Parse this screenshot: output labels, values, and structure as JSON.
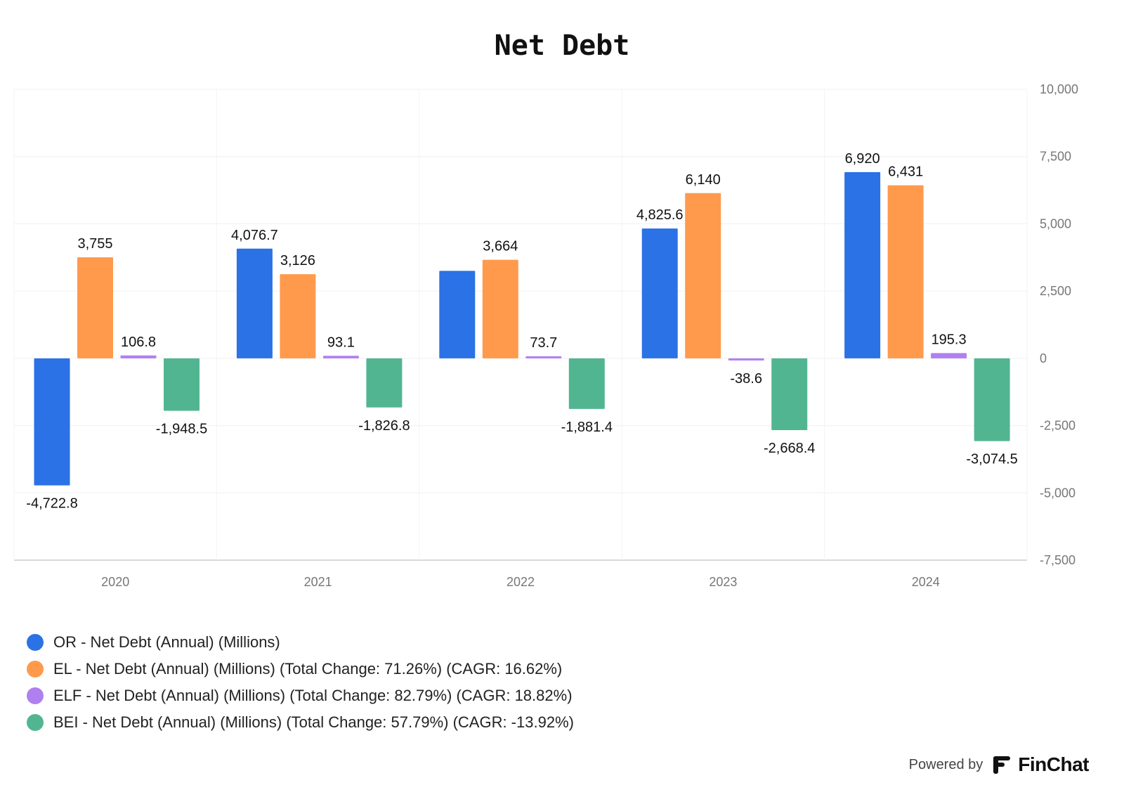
{
  "chart_data": {
    "type": "bar",
    "title": "Net Debt",
    "categories": [
      "2020",
      "2021",
      "2022",
      "2023",
      "2024"
    ],
    "ylim": [
      -7500,
      10000
    ],
    "yticks": [
      "10,000",
      "7,500",
      "5,000",
      "2,500",
      "0",
      "-2,500",
      "-5,000",
      "-7,500"
    ],
    "ytick_values": [
      10000,
      7500,
      5000,
      2500,
      0,
      -2500,
      -5000,
      -7500
    ],
    "grid": true,
    "legend_position": "bottom-left",
    "series": [
      {
        "name": "OR - Net Debt (Annual) (Millions)",
        "color": "#2a72e5",
        "values": [
          -4722.8,
          4076.7,
          3250,
          4825.6,
          6920
        ],
        "labels": [
          "-4,722.8",
          "4,076.7",
          "",
          "4,825.6",
          "6,920"
        ]
      },
      {
        "name": "EL - Net Debt (Annual) (Millions) (Total Change: 71.26%) (CAGR: 16.62%)",
        "color": "#ff9a4d",
        "values": [
          3755,
          3126,
          3664,
          6140,
          6431
        ],
        "labels": [
          "3,755",
          "3,126",
          "3,664",
          "6,140",
          "6,431"
        ]
      },
      {
        "name": "ELF - Net Debt (Annual) (Millions) (Total Change: 82.79%) (CAGR: 18.82%)",
        "color": "#b07ff0",
        "values": [
          106.8,
          93.1,
          73.7,
          -38.6,
          195.3
        ],
        "labels": [
          "106.8",
          "93.1",
          "73.7",
          "-38.6",
          "195.3"
        ]
      },
      {
        "name": "BEI - Net Debt (Annual) (Millions) (Total Change: 57.79%) (CAGR: -13.92%)",
        "color": "#52b592",
        "values": [
          -1948.5,
          -1826.8,
          -1881.4,
          -2668.4,
          -3074.5
        ],
        "labels": [
          "-1,948.5",
          "-1,826.8",
          "-1,881.4",
          "-2,668.4",
          "-3,074.5"
        ]
      }
    ]
  },
  "footer": {
    "powered_by": "Powered by",
    "brand": "FinChat"
  }
}
